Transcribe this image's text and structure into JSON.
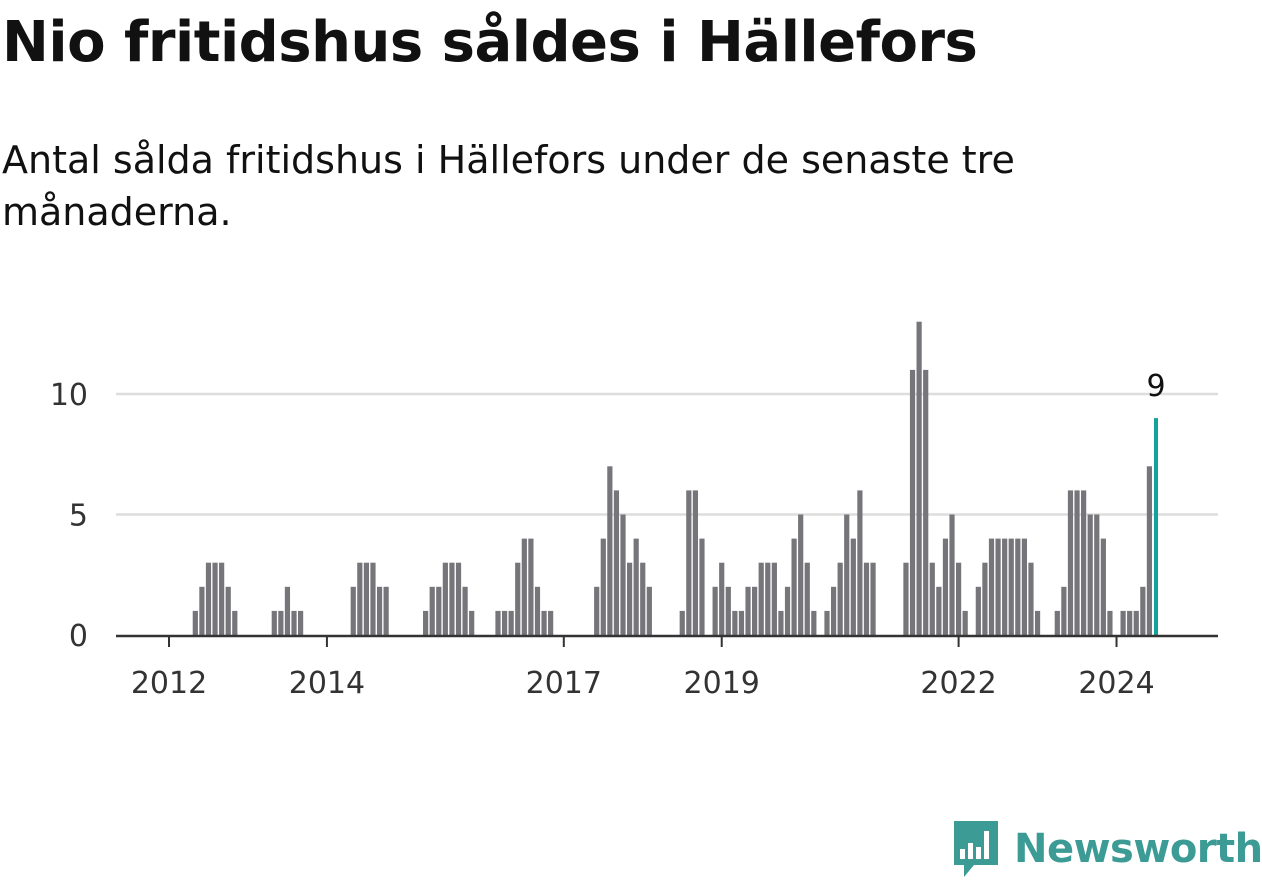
{
  "title": "Nio fritidshus såldes i Hällefors",
  "subtitle": "Antal sålda fritidshus i Hällefors under de senaste tre månaderna.",
  "logo": {
    "text": "Newsworthy",
    "icon": "newsworthy-bar-chart-logo-icon",
    "color": "#3d9b96"
  },
  "colors": {
    "bar": "#76757a",
    "highlight": "#13a39b",
    "grid": "#dddddd",
    "axis": "#333333"
  },
  "chart_data": {
    "type": "bar",
    "x_ticks": [
      "2012",
      "2014",
      "2017",
      "2019",
      "2022",
      "2024"
    ],
    "y_ticks": [
      "0",
      "5",
      "10"
    ],
    "ylim": [
      0,
      13
    ],
    "series": [
      {
        "values": [
          {
            "x": "2011-06",
            "y": 0
          },
          {
            "x": "2011-07",
            "y": 0
          },
          {
            "x": "2011-08",
            "y": 0
          },
          {
            "x": "2011-09",
            "y": 0
          },
          {
            "x": "2011-10",
            "y": 0
          },
          {
            "x": "2011-11",
            "y": 0
          },
          {
            "x": "2011-12",
            "y": 0
          },
          {
            "x": "2012-01",
            "y": 0
          },
          {
            "x": "2012-02",
            "y": 0
          },
          {
            "x": "2012-03",
            "y": 0
          },
          {
            "x": "2012-04",
            "y": 0
          },
          {
            "x": "2012-05",
            "y": 1
          },
          {
            "x": "2012-06",
            "y": 2
          },
          {
            "x": "2012-07",
            "y": 3
          },
          {
            "x": "2012-08",
            "y": 3
          },
          {
            "x": "2012-09",
            "y": 3
          },
          {
            "x": "2012-10",
            "y": 2
          },
          {
            "x": "2012-11",
            "y": 1
          },
          {
            "x": "2012-12",
            "y": 0
          },
          {
            "x": "2013-01",
            "y": 0
          },
          {
            "x": "2013-02",
            "y": 0
          },
          {
            "x": "2013-03",
            "y": 0
          },
          {
            "x": "2013-04",
            "y": 0
          },
          {
            "x": "2013-05",
            "y": 1
          },
          {
            "x": "2013-06",
            "y": 1
          },
          {
            "x": "2013-07",
            "y": 2
          },
          {
            "x": "2013-08",
            "y": 1
          },
          {
            "x": "2013-09",
            "y": 1
          },
          {
            "x": "2013-10",
            "y": 0
          },
          {
            "x": "2013-11",
            "y": 0
          },
          {
            "x": "2013-12",
            "y": 0
          },
          {
            "x": "2014-01",
            "y": 0
          },
          {
            "x": "2014-02",
            "y": 0
          },
          {
            "x": "2014-03",
            "y": 0
          },
          {
            "x": "2014-04",
            "y": 0
          },
          {
            "x": "2014-05",
            "y": 2
          },
          {
            "x": "2014-06",
            "y": 3
          },
          {
            "x": "2014-07",
            "y": 3
          },
          {
            "x": "2014-08",
            "y": 3
          },
          {
            "x": "2014-09",
            "y": 2
          },
          {
            "x": "2014-10",
            "y": 2
          },
          {
            "x": "2014-11",
            "y": 0
          },
          {
            "x": "2014-12",
            "y": 0
          },
          {
            "x": "2015-01",
            "y": 0
          },
          {
            "x": "2015-02",
            "y": 0
          },
          {
            "x": "2015-03",
            "y": 0
          },
          {
            "x": "2015-04",
            "y": 1
          },
          {
            "x": "2015-05",
            "y": 2
          },
          {
            "x": "2015-06",
            "y": 2
          },
          {
            "x": "2015-07",
            "y": 3
          },
          {
            "x": "2015-08",
            "y": 3
          },
          {
            "x": "2015-09",
            "y": 3
          },
          {
            "x": "2015-10",
            "y": 2
          },
          {
            "x": "2015-11",
            "y": 1
          },
          {
            "x": "2015-12",
            "y": 0
          },
          {
            "x": "2016-01",
            "y": 0
          },
          {
            "x": "2016-02",
            "y": 0
          },
          {
            "x": "2016-03",
            "y": 1
          },
          {
            "x": "2016-04",
            "y": 1
          },
          {
            "x": "2016-05",
            "y": 1
          },
          {
            "x": "2016-06",
            "y": 3
          },
          {
            "x": "2016-07",
            "y": 4
          },
          {
            "x": "2016-08",
            "y": 4
          },
          {
            "x": "2016-09",
            "y": 2
          },
          {
            "x": "2016-10",
            "y": 1
          },
          {
            "x": "2016-11",
            "y": 1
          },
          {
            "x": "2016-12",
            "y": 0
          },
          {
            "x": "2017-01",
            "y": 0
          },
          {
            "x": "2017-02",
            "y": 0
          },
          {
            "x": "2017-03",
            "y": 0
          },
          {
            "x": "2017-04",
            "y": 0
          },
          {
            "x": "2017-05",
            "y": 0
          },
          {
            "x": "2017-06",
            "y": 2
          },
          {
            "x": "2017-07",
            "y": 4
          },
          {
            "x": "2017-08",
            "y": 7
          },
          {
            "x": "2017-09",
            "y": 6
          },
          {
            "x": "2017-10",
            "y": 5
          },
          {
            "x": "2017-11",
            "y": 3
          },
          {
            "x": "2017-12",
            "y": 4
          },
          {
            "x": "2018-01",
            "y": 3
          },
          {
            "x": "2018-02",
            "y": 2
          },
          {
            "x": "2018-03",
            "y": 0
          },
          {
            "x": "2018-04",
            "y": 0
          },
          {
            "x": "2018-05",
            "y": 0
          },
          {
            "x": "2018-06",
            "y": 0
          },
          {
            "x": "2018-07",
            "y": 1
          },
          {
            "x": "2018-08",
            "y": 6
          },
          {
            "x": "2018-09",
            "y": 6
          },
          {
            "x": "2018-10",
            "y": 4
          },
          {
            "x": "2018-11",
            "y": 0
          },
          {
            "x": "2018-12",
            "y": 2
          },
          {
            "x": "2019-01",
            "y": 3
          },
          {
            "x": "2019-02",
            "y": 2
          },
          {
            "x": "2019-03",
            "y": 1
          },
          {
            "x": "2019-04",
            "y": 1
          },
          {
            "x": "2019-05",
            "y": 2
          },
          {
            "x": "2019-06",
            "y": 2
          },
          {
            "x": "2019-07",
            "y": 3
          },
          {
            "x": "2019-08",
            "y": 3
          },
          {
            "x": "2019-09",
            "y": 3
          },
          {
            "x": "2019-10",
            "y": 1
          },
          {
            "x": "2019-11",
            "y": 2
          },
          {
            "x": "2019-12",
            "y": 4
          },
          {
            "x": "2020-01",
            "y": 5
          },
          {
            "x": "2020-02",
            "y": 3
          },
          {
            "x": "2020-03",
            "y": 1
          },
          {
            "x": "2020-04",
            "y": 0
          },
          {
            "x": "2020-05",
            "y": 1
          },
          {
            "x": "2020-06",
            "y": 2
          },
          {
            "x": "2020-07",
            "y": 3
          },
          {
            "x": "2020-08",
            "y": 5
          },
          {
            "x": "2020-09",
            "y": 4
          },
          {
            "x": "2020-10",
            "y": 6
          },
          {
            "x": "2020-11",
            "y": 3
          },
          {
            "x": "2020-12",
            "y": 3
          },
          {
            "x": "2021-01",
            "y": 0
          },
          {
            "x": "2021-02",
            "y": 0
          },
          {
            "x": "2021-03",
            "y": 0
          },
          {
            "x": "2021-04",
            "y": 0
          },
          {
            "x": "2021-05",
            "y": 3
          },
          {
            "x": "2021-06",
            "y": 11
          },
          {
            "x": "2021-07",
            "y": 13
          },
          {
            "x": "2021-08",
            "y": 11
          },
          {
            "x": "2021-09",
            "y": 3
          },
          {
            "x": "2021-10",
            "y": 2
          },
          {
            "x": "2021-11",
            "y": 4
          },
          {
            "x": "2021-12",
            "y": 5
          },
          {
            "x": "2022-01",
            "y": 3
          },
          {
            "x": "2022-02",
            "y": 1
          },
          {
            "x": "2022-03",
            "y": 0
          },
          {
            "x": "2022-04",
            "y": 2
          },
          {
            "x": "2022-05",
            "y": 3
          },
          {
            "x": "2022-06",
            "y": 4
          },
          {
            "x": "2022-07",
            "y": 4
          },
          {
            "x": "2022-08",
            "y": 4
          },
          {
            "x": "2022-09",
            "y": 4
          },
          {
            "x": "2022-10",
            "y": 4
          },
          {
            "x": "2022-11",
            "y": 4
          },
          {
            "x": "2022-12",
            "y": 3
          },
          {
            "x": "2023-01",
            "y": 1
          },
          {
            "x": "2023-02",
            "y": 0
          },
          {
            "x": "2023-03",
            "y": 0
          },
          {
            "x": "2023-04",
            "y": 1
          },
          {
            "x": "2023-05",
            "y": 2
          },
          {
            "x": "2023-06",
            "y": 6
          },
          {
            "x": "2023-07",
            "y": 6
          },
          {
            "x": "2023-08",
            "y": 6
          },
          {
            "x": "2023-09",
            "y": 5
          },
          {
            "x": "2023-10",
            "y": 5
          },
          {
            "x": "2023-11",
            "y": 4
          },
          {
            "x": "2023-12",
            "y": 1
          },
          {
            "x": "2024-01",
            "y": 0
          },
          {
            "x": "2024-02",
            "y": 1
          },
          {
            "x": "2024-03",
            "y": 1
          },
          {
            "x": "2024-04",
            "y": 1
          },
          {
            "x": "2024-05",
            "y": 2
          },
          {
            "x": "2024-06",
            "y": 7
          },
          {
            "x": "2024-07",
            "y": 9
          }
        ]
      }
    ],
    "highlight": {
      "x": "2024-07",
      "y": 9,
      "label": "9"
    },
    "grid": "horizontal"
  }
}
